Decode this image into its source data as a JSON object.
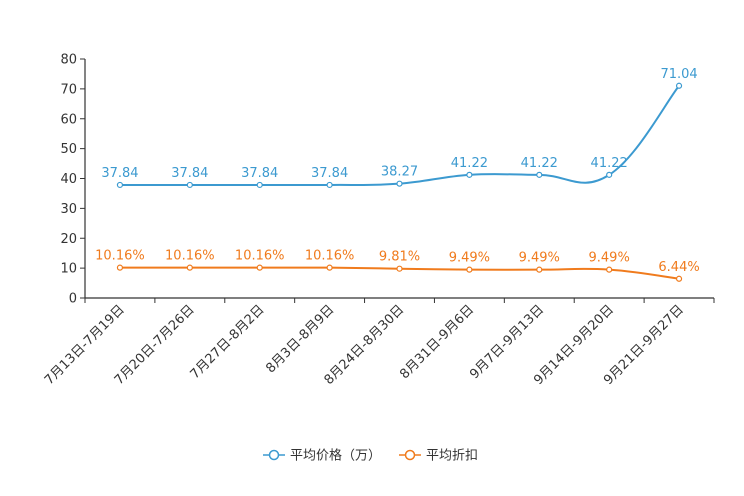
{
  "chart_data": {
    "type": "line",
    "title": "",
    "xlabel": "",
    "ylabel": "",
    "ylim": [
      0,
      80
    ],
    "yticks": [
      0,
      10,
      20,
      30,
      40,
      50,
      60,
      70,
      80
    ],
    "grid": false,
    "legend_position": "bottom-center",
    "categories": [
      "7月13日-7月19日",
      "7月20日-7月26日",
      "7月27日-8月2日",
      "8月3日-8月9日",
      "8月24日-8月30日",
      "8月31日-9月6日",
      "9月7日-9月13日",
      "9月14日-9月20日",
      "9月21日-9月27日"
    ],
    "series": [
      {
        "name": "平均价格（万）",
        "color": "#3c9ad0",
        "values": [
          37.84,
          37.84,
          37.84,
          37.84,
          38.27,
          41.22,
          41.22,
          41.22,
          71.04
        ],
        "labels": [
          "37.84",
          "37.84",
          "37.84",
          "37.84",
          "38.27",
          "41.22",
          "41.22",
          "41.22",
          "71.04"
        ]
      },
      {
        "name": "平均折扣",
        "color": "#f07b1d",
        "values": [
          10.16,
          10.16,
          10.16,
          10.16,
          9.81,
          9.49,
          9.49,
          9.49,
          6.44
        ],
        "labels": [
          "10.16%",
          "10.16%",
          "10.16%",
          "10.16%",
          "9.81%",
          "9.49%",
          "9.49%",
          "9.49%",
          "6.44%"
        ]
      }
    ]
  }
}
